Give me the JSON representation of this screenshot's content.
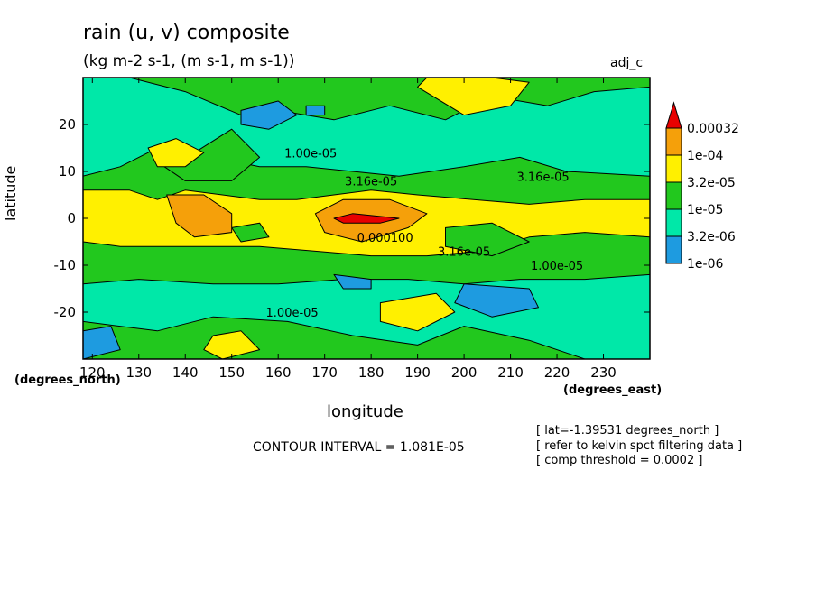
{
  "header": {
    "title": "rain (u, v) composite",
    "units": "(kg m-2 s-1, (m s-1, m s-1))",
    "tag": "adj_c"
  },
  "axes": {
    "xlabel": "longitude",
    "ylabel": "latitude",
    "xunit": "(degrees_east)",
    "yunit": "(degrees_north)"
  },
  "footer": {
    "contour_interval": "CONTOUR INTERVAL = 1.081E-05",
    "notes": [
      "[ lat=-1.39531 degrees_north ]",
      "[ refer to kelvin spct filtering data ]",
      "[ comp threshold = 0.0002 ]"
    ]
  },
  "colors": {
    "c0": "#1e9be0",
    "c1": "#00e8a8",
    "c2": "#22c81e",
    "c3": "#fff000",
    "c4": "#f5a00a",
    "c5": "#e80000"
  },
  "chart_data": {
    "type": "heatmap",
    "xlim": [
      118,
      240
    ],
    "ylim": [
      -30,
      30
    ],
    "xticks": [
      120,
      130,
      140,
      150,
      160,
      170,
      180,
      190,
      200,
      210,
      220,
      230
    ],
    "yticks": [
      20,
      10,
      0,
      -10,
      -20
    ],
    "legend": {
      "placement": "right",
      "labels": [
        "0.00032",
        "1e-04",
        "3.2e-05",
        "1e-05",
        "3.2e-06",
        "1e-06"
      ],
      "bins": [
        "c0",
        "c1",
        "c2",
        "c3",
        "c4",
        "c5"
      ]
    },
    "contour_labels": [
      {
        "text": "1.00e-05",
        "lon": 167,
        "lat": 13
      },
      {
        "text": "3.16e-05",
        "lon": 180,
        "lat": 7
      },
      {
        "text": "3.16e-05",
        "lon": 217,
        "lat": 8
      },
      {
        "text": "0.000100",
        "lon": 183,
        "lat": -5
      },
      {
        "text": "3.16e-05",
        "lon": 200,
        "lat": -8
      },
      {
        "text": "1.00e-05",
        "lon": 220,
        "lat": -11
      },
      {
        "text": "1.00e-05",
        "lon": 163,
        "lat": -21
      }
    ],
    "regions": [
      {
        "bin": "c2",
        "pts": [
          [
            118,
            30
          ],
          [
            240,
            30
          ],
          [
            240,
            -30
          ],
          [
            118,
            -30
          ]
        ]
      },
      {
        "bin": "c1",
        "pts": [
          [
            118,
            30
          ],
          [
            240,
            30
          ],
          [
            240,
            9
          ],
          [
            222,
            10
          ],
          [
            212,
            13
          ],
          [
            200,
            11
          ],
          [
            186,
            9
          ],
          [
            176,
            10
          ],
          [
            166,
            11
          ],
          [
            156,
            11
          ],
          [
            146,
            13
          ],
          [
            136,
            16
          ],
          [
            126,
            11
          ],
          [
            118,
            9
          ]
        ]
      },
      {
        "bin": "c1",
        "pts": [
          [
            118,
            -14
          ],
          [
            130,
            -13
          ],
          [
            146,
            -14
          ],
          [
            160,
            -14
          ],
          [
            174,
            -13
          ],
          [
            188,
            -13
          ],
          [
            200,
            -14
          ],
          [
            212,
            -13
          ],
          [
            226,
            -13
          ],
          [
            240,
            -12
          ],
          [
            240,
            -30
          ],
          [
            226,
            -30
          ],
          [
            214,
            -26
          ],
          [
            200,
            -23
          ],
          [
            190,
            -27
          ],
          [
            176,
            -25
          ],
          [
            162,
            -22
          ],
          [
            146,
            -21
          ],
          [
            134,
            -24
          ],
          [
            118,
            -22
          ]
        ]
      },
      {
        "bin": "c2",
        "pts": [
          [
            128,
            30
          ],
          [
            140,
            27
          ],
          [
            152,
            22
          ],
          [
            160,
            23
          ],
          [
            172,
            21
          ],
          [
            184,
            24
          ],
          [
            196,
            21
          ],
          [
            206,
            26
          ],
          [
            218,
            24
          ],
          [
            228,
            27
          ],
          [
            240,
            28
          ],
          [
            240,
            30
          ],
          [
            128,
            30
          ]
        ]
      },
      {
        "bin": "c2",
        "pts": [
          [
            134,
            12
          ],
          [
            142,
            14
          ],
          [
            150,
            19
          ],
          [
            156,
            13
          ],
          [
            150,
            8
          ],
          [
            140,
            8
          ]
        ]
      },
      {
        "bin": "c3",
        "pts": [
          [
            118,
            6
          ],
          [
            128,
            6
          ],
          [
            134,
            4
          ],
          [
            140,
            6
          ],
          [
            148,
            5
          ],
          [
            156,
            4
          ],
          [
            164,
            4
          ],
          [
            172,
            5
          ],
          [
            180,
            6
          ],
          [
            190,
            5
          ],
          [
            202,
            4
          ],
          [
            214,
            3
          ],
          [
            226,
            4
          ],
          [
            240,
            4
          ],
          [
            240,
            -4
          ],
          [
            226,
            -3
          ],
          [
            214,
            -4
          ],
          [
            204,
            -7
          ],
          [
            192,
            -8
          ],
          [
            180,
            -8
          ],
          [
            168,
            -7
          ],
          [
            156,
            -6
          ],
          [
            146,
            -6
          ],
          [
            136,
            -6
          ],
          [
            126,
            -6
          ],
          [
            118,
            -5
          ]
        ]
      },
      {
        "bin": "c3",
        "pts": [
          [
            190,
            28
          ],
          [
            200,
            22
          ],
          [
            210,
            24
          ],
          [
            214,
            29
          ],
          [
            206,
            30
          ],
          [
            192,
            30
          ]
        ]
      },
      {
        "bin": "c3",
        "pts": [
          [
            132,
            15
          ],
          [
            138,
            17
          ],
          [
            144,
            14
          ],
          [
            140,
            11
          ],
          [
            134,
            11
          ]
        ]
      },
      {
        "bin": "c3",
        "pts": [
          [
            182,
            -18
          ],
          [
            194,
            -16
          ],
          [
            198,
            -20
          ],
          [
            190,
            -24
          ],
          [
            182,
            -22
          ]
        ]
      },
      {
        "bin": "c3",
        "pts": [
          [
            146,
            -25
          ],
          [
            152,
            -24
          ],
          [
            156,
            -28
          ],
          [
            148,
            -30
          ],
          [
            144,
            -28
          ]
        ]
      },
      {
        "bin": "c2",
        "pts": [
          [
            196,
            -2
          ],
          [
            206,
            -1
          ],
          [
            214,
            -5
          ],
          [
            206,
            -8
          ],
          [
            196,
            -6
          ]
        ]
      },
      {
        "bin": "c2",
        "pts": [
          [
            150,
            -2
          ],
          [
            156,
            -1
          ],
          [
            158,
            -4
          ],
          [
            152,
            -5
          ]
        ]
      },
      {
        "bin": "c0",
        "pts": [
          [
            152,
            23
          ],
          [
            160,
            25
          ],
          [
            164,
            22
          ],
          [
            158,
            19
          ],
          [
            152,
            20
          ]
        ]
      },
      {
        "bin": "c0",
        "pts": [
          [
            200,
            -14
          ],
          [
            214,
            -15
          ],
          [
            216,
            -19
          ],
          [
            206,
            -21
          ],
          [
            198,
            -18
          ]
        ]
      },
      {
        "bin": "c0",
        "pts": [
          [
            172,
            -12
          ],
          [
            180,
            -13
          ],
          [
            180,
            -15
          ],
          [
            174,
            -15
          ]
        ]
      },
      {
        "bin": "c0",
        "pts": [
          [
            118,
            -24
          ],
          [
            124,
            -23
          ],
          [
            126,
            -28
          ],
          [
            118,
            -30
          ]
        ]
      },
      {
        "bin": "c0",
        "pts": [
          [
            166,
            24
          ],
          [
            170,
            24
          ],
          [
            170,
            22
          ],
          [
            166,
            22
          ]
        ]
      },
      {
        "bin": "c4",
        "pts": [
          [
            136,
            5
          ],
          [
            144,
            5
          ],
          [
            150,
            1
          ],
          [
            150,
            -3
          ],
          [
            142,
            -4
          ],
          [
            138,
            -1
          ]
        ]
      },
      {
        "bin": "c4",
        "pts": [
          [
            168,
            1
          ],
          [
            174,
            4
          ],
          [
            184,
            4
          ],
          [
            192,
            1
          ],
          [
            188,
            -2
          ],
          [
            178,
            -5
          ],
          [
            170,
            -3
          ]
        ]
      },
      {
        "bin": "c5",
        "pts": [
          [
            172,
            0
          ],
          [
            176,
            1
          ],
          [
            186,
            0
          ],
          [
            182,
            -1
          ],
          [
            174,
            -1
          ]
        ]
      }
    ]
  }
}
